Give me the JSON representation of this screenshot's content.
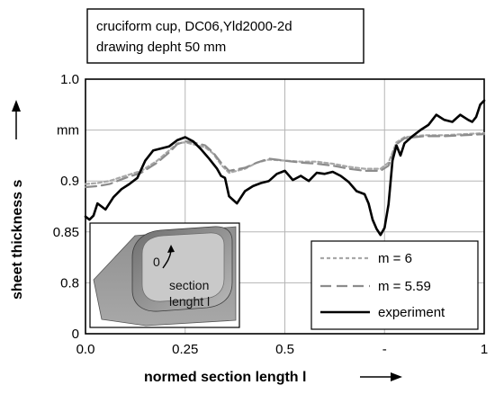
{
  "chart_data": {
    "type": "line",
    "title_lines": [
      "cruciform cup, DC06,Yld2000-2d",
      "drawing depht 50 mm"
    ],
    "xlabel": "normed section length l",
    "ylabel": "sheet thickness s",
    "xlim": [
      0,
      1
    ],
    "ylim": [
      0.75,
      1.0
    ],
    "x_ticks": [
      {
        "v": 0.0,
        "label": "0.0"
      },
      {
        "v": 0.25,
        "label": "0.25"
      },
      {
        "v": 0.5,
        "label": "0.5"
      },
      {
        "v": 0.75,
        "label": "-"
      },
      {
        "v": 1.0,
        "label": "1"
      }
    ],
    "y_ticks": [
      {
        "v": 1.0,
        "label": "1.0"
      },
      {
        "v": 0.95,
        "label": "mm"
      },
      {
        "v": 0.9,
        "label": "0.9"
      },
      {
        "v": 0.85,
        "label": "0.85"
      },
      {
        "v": 0.8,
        "label": "0.8"
      },
      {
        "v": 0.75,
        "label": "0"
      }
    ],
    "grid": true,
    "legend_position": "bottom-right",
    "series": [
      {
        "name": "m = 6",
        "color": "#a8a8a8",
        "dash": "4,3",
        "width": 2.2,
        "x": [
          0,
          0.03,
          0.06,
          0.1,
          0.14,
          0.18,
          0.21,
          0.23,
          0.25,
          0.27,
          0.3,
          0.32,
          0.34,
          0.36,
          0.4,
          0.43,
          0.46,
          0.5,
          0.54,
          0.58,
          0.62,
          0.66,
          0.7,
          0.74,
          0.76,
          0.78,
          0.8,
          0.85,
          0.9,
          0.95,
          1.0
        ],
        "y": [
          0.897,
          0.898,
          0.9,
          0.905,
          0.91,
          0.92,
          0.93,
          0.937,
          0.938,
          0.936,
          0.933,
          0.927,
          0.916,
          0.908,
          0.912,
          0.918,
          0.921,
          0.92,
          0.919,
          0.919,
          0.917,
          0.914,
          0.912,
          0.912,
          0.918,
          0.938,
          0.943,
          0.945,
          0.945,
          0.946,
          0.947
        ]
      },
      {
        "name": "m = 5.59",
        "color": "#8c8c8c",
        "dash": "12,6",
        "width": 2.2,
        "x": [
          0,
          0.03,
          0.06,
          0.1,
          0.14,
          0.18,
          0.21,
          0.23,
          0.25,
          0.27,
          0.3,
          0.32,
          0.34,
          0.36,
          0.4,
          0.43,
          0.46,
          0.5,
          0.54,
          0.58,
          0.62,
          0.66,
          0.7,
          0.74,
          0.76,
          0.78,
          0.8,
          0.85,
          0.9,
          0.95,
          1.0
        ],
        "y": [
          0.894,
          0.895,
          0.897,
          0.903,
          0.908,
          0.918,
          0.928,
          0.936,
          0.939,
          0.938,
          0.935,
          0.928,
          0.918,
          0.91,
          0.913,
          0.918,
          0.922,
          0.92,
          0.918,
          0.917,
          0.915,
          0.912,
          0.91,
          0.91,
          0.915,
          0.936,
          0.942,
          0.944,
          0.944,
          0.945,
          0.946
        ]
      },
      {
        "name": "experiment",
        "color": "#000000",
        "dash": "",
        "width": 2.6,
        "x": [
          0,
          0.01,
          0.02,
          0.03,
          0.05,
          0.07,
          0.09,
          0.11,
          0.13,
          0.15,
          0.17,
          0.19,
          0.21,
          0.23,
          0.25,
          0.27,
          0.29,
          0.31,
          0.33,
          0.34,
          0.35,
          0.36,
          0.38,
          0.4,
          0.42,
          0.44,
          0.46,
          0.48,
          0.5,
          0.52,
          0.54,
          0.56,
          0.58,
          0.6,
          0.62,
          0.64,
          0.66,
          0.68,
          0.7,
          0.71,
          0.72,
          0.73,
          0.74,
          0.75,
          0.76,
          0.77,
          0.78,
          0.79,
          0.8,
          0.82,
          0.84,
          0.86,
          0.88,
          0.9,
          0.92,
          0.94,
          0.96,
          0.97,
          0.98,
          0.99,
          1.0
        ],
        "y": [
          0.865,
          0.862,
          0.866,
          0.878,
          0.872,
          0.884,
          0.892,
          0.897,
          0.903,
          0.92,
          0.93,
          0.932,
          0.934,
          0.94,
          0.943,
          0.939,
          0.931,
          0.922,
          0.912,
          0.905,
          0.903,
          0.885,
          0.878,
          0.89,
          0.895,
          0.898,
          0.9,
          0.907,
          0.91,
          0.901,
          0.905,
          0.9,
          0.908,
          0.907,
          0.909,
          0.905,
          0.899,
          0.89,
          0.887,
          0.878,
          0.862,
          0.853,
          0.847,
          0.854,
          0.877,
          0.92,
          0.935,
          0.925,
          0.937,
          0.944,
          0.95,
          0.955,
          0.965,
          0.96,
          0.958,
          0.965,
          0.96,
          0.958,
          0.963,
          0.975,
          0.979
        ]
      }
    ]
  },
  "inset": {
    "zero_label": "0",
    "caption_lines": [
      "section",
      "lenght l"
    ]
  }
}
